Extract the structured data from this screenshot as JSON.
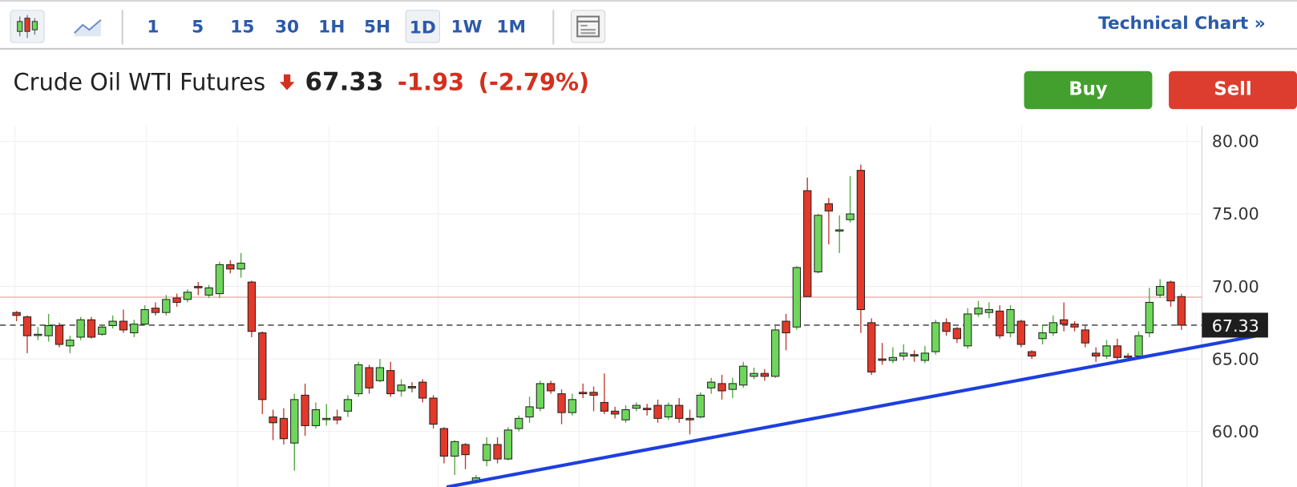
{
  "toolbar": {
    "intervals": [
      "1",
      "5",
      "15",
      "30",
      "1H",
      "5H",
      "1D",
      "1W",
      "1M"
    ],
    "selected": "1D",
    "link": "Technical Chart »"
  },
  "header": {
    "name": "Crude Oil WTI Futures",
    "price": "67.33",
    "change": "-1.93",
    "change_pct": "(-2.79%)"
  },
  "buttons": {
    "buy": "Buy",
    "sell": "Sell"
  },
  "chart_data": {
    "type": "candlestick",
    "up_color": "#6fd65c",
    "down_color": "#e2392b",
    "ylim": [
      56.17,
      81.08
    ],
    "yticks": [
      {
        "value": 60,
        "label": "60.00"
      },
      {
        "value": 65,
        "label": "65.00"
      },
      {
        "value": 70,
        "label": "70.00"
      },
      {
        "value": 75,
        "label": "75.00"
      },
      {
        "value": 80,
        "label": "80.00"
      }
    ],
    "last": 67.33,
    "reference_line": 69.26,
    "open": [
      68.2,
      67.9,
      66.7,
      66.6,
      67.3,
      65.9,
      66.5,
      67.7,
      66.7,
      67.3,
      67.6,
      66.8,
      67.4,
      68.5,
      68.2,
      69.2,
      69.1,
      70.0,
      69.4,
      69.5,
      71.5,
      71.2,
      70.3,
      66.8,
      61.0,
      60.9,
      59.2,
      62.5,
      60.4,
      60.9,
      61.0,
      61.4,
      62.6,
      64.4,
      63.5,
      64.2,
      62.8,
      63.1,
      63.4,
      62.3,
      60.2,
      58.3,
      59.1,
      56.5,
      58.0,
      59.1,
      58.1,
      60.2,
      61.0,
      61.6,
      63.3,
      62.6,
      61.3,
      62.7,
      62.7,
      62.0,
      61.4,
      60.8,
      61.6,
      61.6,
      61.8,
      61.0,
      61.8,
      60.9,
      61.0,
      63.0,
      63.3,
      62.9,
      63.2,
      63.8,
      64.0,
      63.8,
      67.6,
      67.2,
      76.6,
      71.0,
      75.7,
      73.9,
      74.6,
      78.0,
      67.5,
      65.0,
      64.9,
      65.2,
      65.3,
      64.9,
      65.5,
      67.5,
      67.1,
      65.9,
      68.1,
      68.2,
      68.3,
      66.8,
      67.6,
      65.5,
      66.4,
      66.8,
      67.7,
      67.4,
      67.0,
      65.4,
      65.2,
      65.9,
      65.2,
      65.2,
      66.8,
      69.4,
      70.3,
      69.3
    ],
    "high": [
      68.3,
      68.0,
      67.2,
      68.1,
      67.5,
      66.6,
      67.9,
      67.9,
      67.4,
      68.0,
      68.4,
      67.7,
      68.7,
      68.9,
      69.4,
      69.5,
      69.8,
      70.3,
      70.1,
      71.7,
      71.8,
      72.3,
      70.4,
      66.9,
      61.5,
      61.6,
      62.6,
      63.3,
      62.0,
      61.9,
      61.5,
      62.5,
      64.8,
      64.6,
      65.0,
      64.8,
      63.6,
      63.4,
      63.6,
      62.5,
      60.3,
      59.4,
      59.2,
      57.0,
      59.6,
      59.6,
      60.3,
      61.1,
      62.4,
      63.5,
      63.5,
      62.9,
      62.6,
      63.3,
      63.1,
      64.0,
      61.7,
      61.8,
      62.0,
      61.9,
      62.2,
      62.0,
      62.3,
      61.5,
      62.7,
      63.7,
      63.9,
      63.7,
      64.8,
      64.4,
      64.3,
      67.3,
      68.1,
      71.4,
      77.5,
      75.0,
      76.1,
      74.9,
      77.6,
      78.4,
      67.8,
      66.1,
      65.8,
      66.0,
      65.6,
      65.9,
      67.7,
      67.8,
      67.2,
      68.5,
      69.0,
      68.9,
      68.7,
      68.7,
      67.7,
      65.6,
      67.3,
      68.0,
      68.9,
      67.6,
      67.3,
      65.8,
      66.3,
      66.4,
      65.4,
      66.9,
      69.9,
      70.5,
      70.4,
      69.5
    ],
    "low": [
      67.6,
      65.4,
      66.3,
      66.2,
      65.8,
      65.4,
      66.3,
      66.4,
      66.6,
      67.1,
      66.8,
      66.5,
      67.3,
      68.0,
      68.0,
      68.6,
      68.9,
      69.4,
      69.2,
      69.2,
      70.9,
      70.6,
      66.5,
      61.2,
      59.4,
      59.1,
      57.3,
      59.7,
      60.2,
      60.4,
      60.5,
      61.0,
      62.4,
      62.6,
      63.4,
      62.4,
      62.4,
      62.7,
      62.0,
      60.2,
      57.8,
      57.0,
      57.4,
      56.4,
      57.6,
      57.8,
      58.0,
      60.0,
      60.6,
      61.4,
      62.6,
      60.5,
      61.1,
      62.3,
      61.4,
      61.2,
      60.9,
      60.6,
      61.4,
      61.1,
      60.6,
      60.8,
      60.6,
      59.8,
      60.9,
      62.6,
      62.2,
      62.3,
      63.0,
      63.6,
      63.5,
      63.7,
      65.6,
      67.0,
      69.3,
      70.9,
      72.9,
      72.3,
      74.4,
      66.8,
      63.9,
      64.6,
      64.7,
      64.9,
      64.8,
      64.7,
      65.3,
      66.6,
      66.1,
      65.7,
      67.9,
      67.8,
      66.4,
      66.5,
      65.8,
      65.0,
      66.0,
      66.6,
      66.9,
      66.9,
      65.8,
      64.8,
      65.0,
      64.9,
      64.9,
      65.0,
      66.5,
      69.2,
      68.6,
      67.0
    ],
    "close": [
      68.0,
      66.6,
      66.7,
      67.3,
      66.0,
      66.3,
      67.7,
      66.5,
      67.2,
      67.6,
      67.0,
      67.4,
      68.4,
      68.2,
      69.1,
      68.9,
      69.6,
      69.9,
      69.9,
      71.5,
      71.2,
      71.6,
      66.9,
      62.2,
      60.6,
      59.5,
      62.2,
      60.4,
      61.5,
      60.9,
      60.8,
      62.2,
      64.6,
      63.0,
      64.4,
      62.6,
      63.2,
      63.0,
      62.3,
      60.5,
      58.3,
      59.3,
      58.4,
      56.8,
      59.1,
      58.1,
      60.1,
      60.9,
      61.7,
      63.3,
      62.8,
      61.3,
      62.2,
      62.6,
      62.5,
      61.4,
      61.2,
      61.5,
      61.8,
      61.5,
      60.9,
      61.8,
      60.9,
      60.8,
      62.5,
      63.4,
      62.8,
      63.3,
      64.5,
      64.0,
      63.8,
      67.0,
      66.8,
      71.3,
      69.3,
      74.9,
      75.2,
      73.9,
      75.0,
      68.4,
      64.1,
      64.9,
      65.1,
      65.4,
      65.2,
      65.4,
      67.5,
      66.9,
      66.4,
      68.1,
      68.5,
      68.4,
      66.6,
      68.4,
      66.0,
      65.2,
      66.8,
      67.5,
      67.4,
      67.2,
      66.1,
      65.2,
      65.9,
      65.1,
      65.1,
      66.6,
      68.9,
      70.0,
      69.0,
      67.33
    ]
  }
}
